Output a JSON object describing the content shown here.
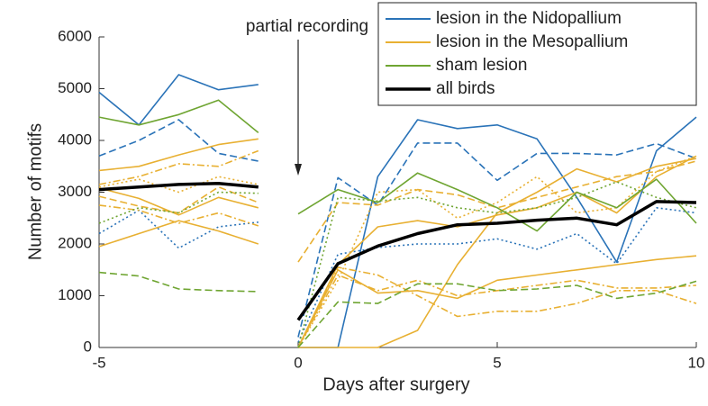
{
  "chart_data": {
    "type": "line",
    "xlabel": "Days after surgery",
    "ylabel": "Number of motifs",
    "annotation": "partial recording",
    "annotation_x": 0,
    "x": [
      -5,
      -4,
      -3,
      -2,
      -1,
      null,
      0,
      1,
      2,
      3,
      4,
      5,
      6,
      7,
      8,
      9,
      10
    ],
    "xlim": [
      -5,
      10
    ],
    "xticks": [
      -5,
      0,
      5,
      10
    ],
    "ylim": [
      0,
      6000
    ],
    "yticks": [
      0,
      1000,
      2000,
      3000,
      4000,
      5000,
      6000
    ],
    "legend": "upper right",
    "series": [
      {
        "name": "lesion in the Nidopallium",
        "color": "#2a73b8",
        "traces": [
          {
            "style": "solid",
            "values": [
              4930,
              4300,
              5270,
              4980,
              5080,
              null,
              0,
              0,
              3300,
              4400,
              4230,
              4300,
              4030,
              2900,
              1650,
              3800,
              4450
            ]
          },
          {
            "style": "dashed",
            "values": [
              3700,
              4000,
              4400,
              3750,
              3600,
              null,
              200,
              3280,
              2750,
              3950,
              3950,
              3230,
              3750,
              3750,
              3720,
              3940,
              3650
            ]
          },
          {
            "style": "dotted",
            "values": [
              2200,
              2650,
              1920,
              2330,
              2420,
              null,
              100,
              1800,
              1930,
              2000,
              2000,
              2100,
              1900,
              2200,
              1620,
              2700,
              2600
            ]
          }
        ]
      },
      {
        "name": "lesion in the Mesopallium",
        "color": "#e8b032",
        "traces": [
          {
            "style": "solid",
            "values": [
              3420,
              3500,
              3720,
              3920,
              4030,
              null,
              0,
              0,
              0,
              330,
              1600,
              2600,
              3000,
              3450,
              3200,
              3500,
              3650
            ]
          },
          {
            "style": "solid",
            "values": [
              3080,
              2880,
              2560,
              2900,
              2700,
              null,
              0,
              1600,
              2330,
              2450,
              2330,
              2560,
              2700,
              3000,
              2600,
              3300,
              3700
            ]
          },
          {
            "style": "dashed",
            "values": [
              2920,
              2730,
              2600,
              3100,
              2800,
              null,
              1650,
              2800,
              2750,
              3050,
              2950,
              2700,
              2900,
              3100,
              3300,
              3400,
              3600
            ]
          },
          {
            "style": "dashdot",
            "values": [
              3150,
              3300,
              3550,
              3500,
              3800,
              null,
              0,
              1400,
              1100,
              1300,
              1000,
              1100,
              1200,
              1300,
              1150,
              1150,
              1200
            ]
          },
          {
            "style": "solid",
            "values": [
              1950,
              2200,
              2450,
              2250,
              2000,
              null,
              0,
              1500,
              1050,
              1100,
              950,
              1300,
              1400,
              1500,
              1600,
              1700,
              1770
            ]
          },
          {
            "style": "dashdot",
            "values": [
              2750,
              2650,
              2400,
              2600,
              2350,
              null,
              0,
              1550,
              1400,
              1000,
              600,
              700,
              700,
              850,
              1100,
              1100,
              850
            ]
          },
          {
            "style": "dotted",
            "values": [
              3100,
              3250,
              3000,
              3300,
              3150,
              null,
              0,
              1300,
              3000,
              3050,
              2500,
              2800,
              3300,
              2600,
              2700,
              3400,
              3700
            ]
          }
        ]
      },
      {
        "name": "sham lesion",
        "color": "#6fa532",
        "traces": [
          {
            "style": "solid",
            "values": [
              4450,
              4300,
              4500,
              4780,
              4150,
              null,
              2580,
              3050,
              2800,
              3370,
              3050,
              2700,
              2250,
              3000,
              2700,
              3250,
              2400
            ]
          },
          {
            "style": "dashed",
            "values": [
              1450,
              1380,
              1130,
              1100,
              1080,
              null,
              0,
              880,
              850,
              1230,
              1230,
              1100,
              1130,
              1200,
              950,
              1050,
              1280
            ]
          },
          {
            "style": "dotted",
            "values": [
              2400,
              2700,
              2600,
              3000,
              2980,
              null,
              0,
              2900,
              2830,
              2900,
              2700,
              2600,
              2700,
              2900,
              3200,
              2900,
              2700
            ]
          }
        ]
      },
      {
        "name": "all birds",
        "color": "#000000",
        "width": 3.5,
        "traces": [
          {
            "style": "solid",
            "values": [
              3050,
              3100,
              3150,
              3170,
              3100,
              null,
              530,
              1620,
              1960,
              2200,
              2370,
              2400,
              2460,
              2500,
              2370,
              2820,
              2800
            ]
          }
        ]
      }
    ]
  }
}
